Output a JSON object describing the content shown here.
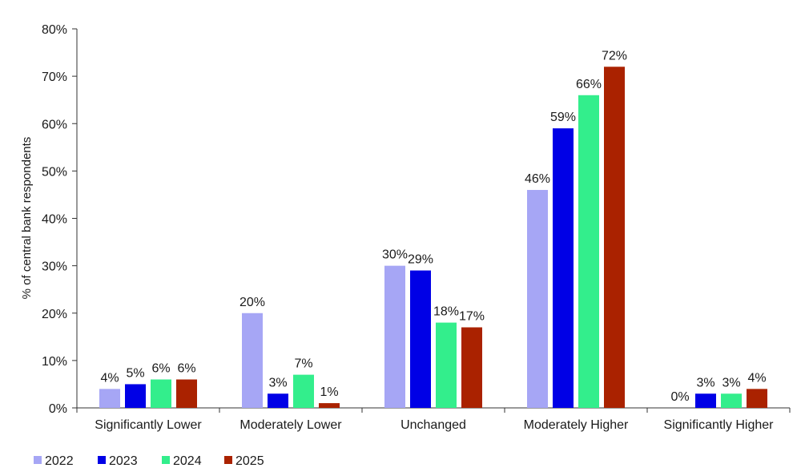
{
  "chart_data": {
    "type": "bar",
    "title": "",
    "xlabel": "",
    "ylabel": "% of central bank respondents",
    "ylim": [
      0,
      80
    ],
    "yticks": [
      "0%",
      "10%",
      "20%",
      "30%",
      "40%",
      "50%",
      "60%",
      "70%",
      "80%"
    ],
    "ytick_values": [
      0,
      10,
      20,
      30,
      40,
      50,
      60,
      70,
      80
    ],
    "categories": [
      "Significantly Lower",
      "Moderately Lower",
      "Unchanged",
      "Moderately Higher",
      "Significantly Higher"
    ],
    "series": [
      {
        "name": "2022",
        "color": "#a6a6f5",
        "values": [
          4,
          20,
          30,
          46,
          0
        ],
        "labels": [
          "4%",
          "20%",
          "30%",
          "46%",
          "0%"
        ]
      },
      {
        "name": "2023",
        "color": "#0000e6",
        "values": [
          5,
          3,
          29,
          59,
          3
        ],
        "labels": [
          "5%",
          "3%",
          "29%",
          "59%",
          "3%"
        ]
      },
      {
        "name": "2024",
        "color": "#33ee8c",
        "values": [
          6,
          7,
          18,
          66,
          3
        ],
        "labels": [
          "6%",
          "7%",
          "18%",
          "66%",
          "3%"
        ]
      },
      {
        "name": "2025",
        "color": "#aa2200",
        "values": [
          6,
          1,
          17,
          72,
          4
        ],
        "labels": [
          "6%",
          "1%",
          "17%",
          "72%",
          "4%"
        ]
      }
    ],
    "grid": false,
    "legend": "bottom-left"
  }
}
